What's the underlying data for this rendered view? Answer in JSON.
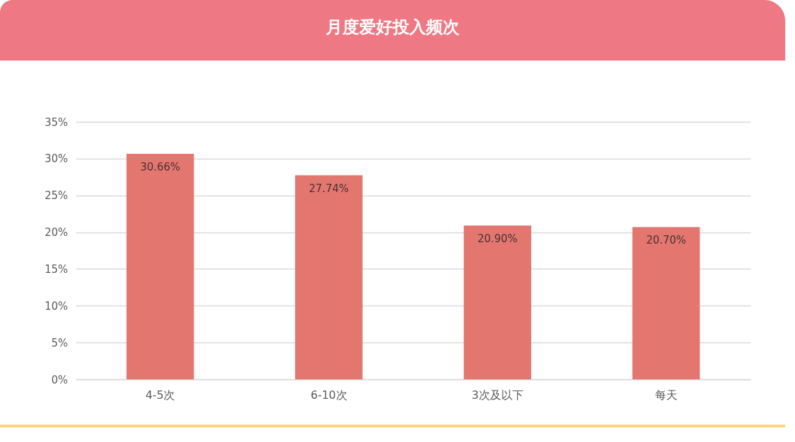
{
  "chart_data": {
    "type": "bar",
    "title": "月度爱好投入频次",
    "categories": [
      "4-5次",
      "6-10次",
      "3次及以下",
      "每天"
    ],
    "values": [
      30.66,
      27.74,
      20.9,
      20.7
    ],
    "color": "#e37770",
    "value_labels": [
      "30.66%",
      "27.74%",
      "20.90%",
      "20.70%"
    ],
    "ylim": [
      0,
      35
    ],
    "yticks": [
      {
        "value": 0,
        "label": "0%"
      },
      {
        "value": 5,
        "label": "5%"
      },
      {
        "value": 10,
        "label": "10%"
      },
      {
        "value": 15,
        "label": "15%"
      },
      {
        "value": 20,
        "label": "20%"
      },
      {
        "value": 25,
        "label": "25%"
      },
      {
        "value": 30,
        "label": "30%"
      },
      {
        "value": 35,
        "label": "35%"
      }
    ],
    "grid": "y"
  }
}
